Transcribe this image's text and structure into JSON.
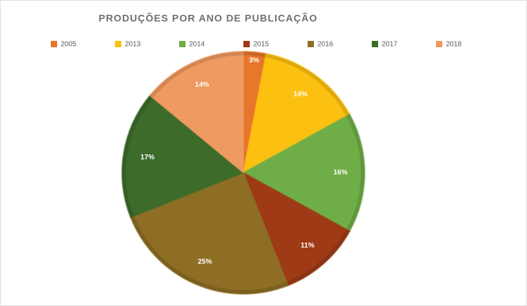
{
  "chart_data": {
    "type": "pie",
    "title": "PRODUÇÕES POR ANO DE PUBLICAÇÃO",
    "categories": [
      "2005",
      "2013",
      "2014",
      "2015",
      "2016",
      "2017",
      "2018"
    ],
    "values": [
      3,
      14,
      16,
      11,
      25,
      17,
      14
    ],
    "value_labels": [
      "3%",
      "14%",
      "16%",
      "11%",
      "25%",
      "17%",
      "14%"
    ],
    "colors": [
      "#e8762c",
      "#fcc010",
      "#6fad47",
      "#9e3a16",
      "#8e6e25",
      "#3d6b2a",
      "#ee9a60"
    ],
    "legend": "top"
  }
}
